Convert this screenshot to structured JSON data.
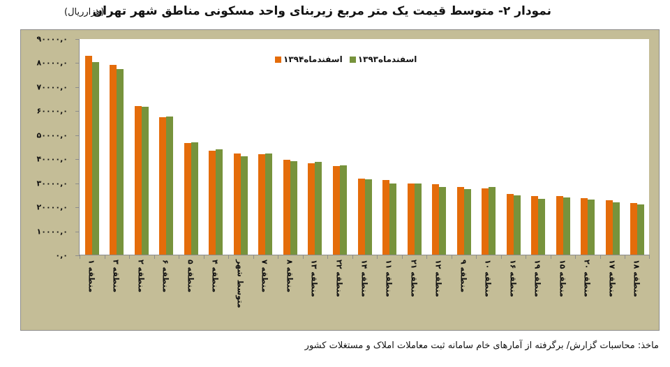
{
  "header": {
    "title": "نمودار ۲- متوسط قیمت یک متر مربع زیربنای واحد مسکونی مناطق شهر تهران",
    "unit": "(هزارریال)"
  },
  "footer": {
    "source": "ماخذ: محاسبات گزارش/ برگرفته از آمارهای خام سامانه ثبت معاملات املاک و مستغلات کشور"
  },
  "colors": {
    "series_1394": "#e46c0a",
    "series_1393": "#77933c",
    "frame_background": "#c4bd97",
    "plot_background": "#ffffff"
  },
  "chart_data": {
    "type": "bar",
    "title": "نمودار ۲- متوسط قیمت یک متر مربع زیربنای واحد مسکونی مناطق شهر تهران",
    "xlabel": "",
    "ylabel": "(هزارریال)",
    "ylim": [
      0,
      90000
    ],
    "yticks": [
      0,
      10000,
      20000,
      30000,
      40000,
      50000,
      60000,
      70000,
      80000,
      90000
    ],
    "ytick_labels": [
      "۰,۰",
      "۱۰۰۰۰,۰",
      "۲۰۰۰۰,۰",
      "۳۰۰۰۰,۰",
      "۴۰۰۰۰,۰",
      "۵۰۰۰۰,۰",
      "۶۰۰۰۰,۰",
      "۷۰۰۰۰,۰",
      "۸۰۰۰۰,۰",
      "۹۰۰۰۰,۰"
    ],
    "grid": false,
    "legend_position": "top-center-inside",
    "categories": [
      "منطقه ۱",
      "منطقه ۳",
      "منطقه ۲",
      "منطقه ۶",
      "منطقه ۵",
      "منطقه ۴",
      "متوسط شهر",
      "منطقه ۷",
      "منطقه ۸",
      "منطقه ۱۳",
      "منطقه ۲۲",
      "منطقه ۱۴",
      "منطقه ۱۱",
      "منطقه ۲۱",
      "منطقه ۱۲",
      "منطقه ۹",
      "منطقه ۱۰",
      "منطقه ۱۶",
      "منطقه ۱۹",
      "منطقه ۱۵",
      "منطقه ۲۰",
      "منطقه ۱۷",
      "منطقه ۱۸"
    ],
    "series": [
      {
        "name": "اسفندماه۱۳۹۴",
        "color": "#e46c0a",
        "values": [
          82700,
          79000,
          61800,
          57200,
          46600,
          43400,
          42200,
          41900,
          39400,
          37900,
          36800,
          31600,
          31100,
          29500,
          29200,
          28100,
          27500,
          25200,
          24300,
          24300,
          23400,
          22600,
          21400
        ]
      },
      {
        "name": "اسفندماه۱۳۹۳",
        "color": "#77933c",
        "values": [
          80100,
          77300,
          61500,
          57500,
          46800,
          43700,
          40800,
          42200,
          38800,
          38500,
          37100,
          31400,
          29500,
          29500,
          28300,
          27200,
          28300,
          24600,
          23100,
          23700,
          22800,
          21700,
          20800
        ]
      }
    ]
  }
}
